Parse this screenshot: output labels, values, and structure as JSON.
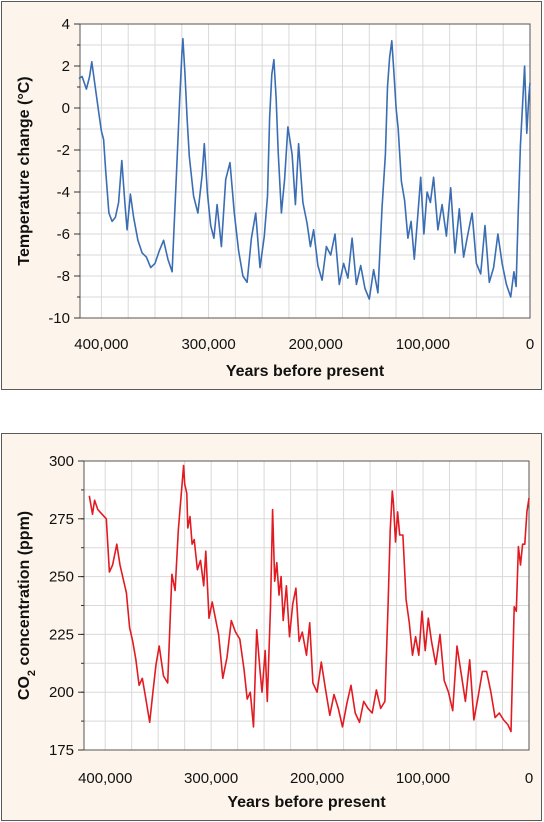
{
  "colors": {
    "background": "#fdf5ec",
    "grid": "#d9d9d9",
    "temperature_line": "#3a6db3",
    "co2_line": "#e21b22"
  },
  "chart_data": [
    {
      "type": "line",
      "xlabel": "Years before present",
      "ylabel": "Temperature change (°C)",
      "xlim": [
        420000,
        0
      ],
      "ylim": [
        -10,
        4
      ],
      "xticks": [
        400000,
        300000,
        200000,
        100000,
        0
      ],
      "xtick_labels": [
        "400,000",
        "300,000",
        "200,000",
        "100,000",
        "0"
      ],
      "yticks": [
        4,
        2,
        0,
        -2,
        -4,
        -6,
        -8,
        -10
      ],
      "ytick_labels": [
        "4",
        "2",
        "0",
        "-2",
        "-4",
        "-6",
        "-8",
        "-10"
      ],
      "grid": true,
      "series": [
        {
          "color": "#3a6db3",
          "x": [
            421000,
            418000,
            414000,
            411000,
            409000,
            405000,
            402000,
            400000,
            398000,
            396000,
            393000,
            390000,
            387000,
            384000,
            381000,
            378000,
            376000,
            373000,
            370000,
            366000,
            362000,
            358000,
            354000,
            350000,
            346000,
            342000,
            338000,
            334000,
            330000,
            327000,
            325000,
            324000,
            322000,
            320000,
            318000,
            314000,
            310000,
            306000,
            304000,
            301000,
            298000,
            295000,
            292000,
            288000,
            284000,
            280000,
            276000,
            272000,
            268000,
            264000,
            260000,
            256000,
            252000,
            248000,
            245000,
            243000,
            241000,
            239000,
            237000,
            235000,
            232000,
            229000,
            226000,
            222000,
            219000,
            216000,
            212000,
            208000,
            205000,
            202000,
            198000,
            194000,
            190000,
            186000,
            182000,
            178000,
            174000,
            170000,
            166000,
            162000,
            158000,
            154000,
            150000,
            146000,
            142000,
            138000,
            135000,
            133000,
            131000,
            129000,
            127000,
            125000,
            123000,
            120000,
            117000,
            114000,
            111000,
            108000,
            105000,
            102000,
            99000,
            96000,
            93000,
            90000,
            86000,
            82000,
            78000,
            74000,
            70000,
            66000,
            62000,
            58000,
            54000,
            50000,
            46000,
            42000,
            38000,
            34000,
            30000,
            26000,
            22000,
            18000,
            15000,
            13000,
            11000,
            9000,
            7000,
            5000,
            3000,
            1000,
            0
          ],
          "y": [
            1.4,
            1.5,
            0.9,
            1.5,
            2.2,
            0.7,
            -0.4,
            -1.1,
            -1.5,
            -3.0,
            -5.0,
            -5.4,
            -5.2,
            -4.5,
            -2.5,
            -4.6,
            -5.8,
            -4.1,
            -5.2,
            -6.3,
            -6.9,
            -7.1,
            -7.6,
            -7.4,
            -6.8,
            -6.3,
            -7.2,
            -7.8,
            -3.2,
            0.3,
            2.5,
            3.3,
            1.6,
            -0.5,
            -2.3,
            -4.2,
            -5.0,
            -3.2,
            -1.7,
            -4.1,
            -5.6,
            -6.2,
            -4.6,
            -6.6,
            -3.4,
            -2.6,
            -5.0,
            -6.8,
            -8.0,
            -8.3,
            -6.2,
            -5.0,
            -7.6,
            -6.1,
            -4.2,
            -0.5,
            1.6,
            2.3,
            0.5,
            -2.1,
            -5.0,
            -3.4,
            -0.9,
            -2.2,
            -4.6,
            -1.7,
            -4.5,
            -5.5,
            -6.6,
            -5.8,
            -7.5,
            -8.2,
            -6.6,
            -7.0,
            -6.0,
            -8.4,
            -7.4,
            -8.1,
            -6.2,
            -8.4,
            -7.5,
            -8.6,
            -9.1,
            -7.7,
            -8.8,
            -4.7,
            -2.2,
            1.0,
            2.4,
            3.2,
            1.7,
            0.0,
            -1.0,
            -3.5,
            -4.4,
            -6.2,
            -5.4,
            -7.2,
            -5.3,
            -3.3,
            -6.0,
            -4.0,
            -4.5,
            -3.3,
            -5.8,
            -4.6,
            -6.1,
            -3.8,
            -6.9,
            -4.8,
            -7.1,
            -6.0,
            -5.0,
            -7.4,
            -7.9,
            -5.6,
            -8.3,
            -7.6,
            -6.0,
            -7.4,
            -8.4,
            -9.0,
            -7.8,
            -8.5,
            -5.0,
            -1.8,
            0.1,
            2.0,
            -1.2,
            0.6,
            1.2
          ]
        }
      ]
    },
    {
      "type": "line",
      "xlabel": "Years before present",
      "ylabel": "CO2 concentration (ppm)",
      "ylabel_main": "CO",
      "ylabel_sub": "2",
      "ylabel_rest": " concentration (ppm)",
      "xlim": [
        420000,
        0
      ],
      "ylim": [
        175,
        300
      ],
      "xticks": [
        400000,
        300000,
        200000,
        100000,
        0
      ],
      "xtick_labels": [
        "400,000",
        "300,000",
        "200,000",
        "100,000",
        "0"
      ],
      "yticks": [
        300,
        275,
        250,
        225,
        200,
        175
      ],
      "ytick_labels": [
        "300",
        "275",
        "250",
        "225",
        "200",
        "175"
      ],
      "grid": true,
      "series": [
        {
          "color": "#e21b22",
          "x": [
            415000,
            412000,
            410000,
            407000,
            403000,
            399000,
            396000,
            393000,
            389000,
            386000,
            383000,
            380000,
            377000,
            374000,
            371000,
            368000,
            365000,
            362000,
            358000,
            355000,
            352000,
            349000,
            345000,
            341000,
            337000,
            334000,
            331000,
            328000,
            326000,
            325000,
            323000,
            322000,
            320000,
            318000,
            316000,
            313000,
            310000,
            307000,
            305000,
            302000,
            299000,
            296000,
            293000,
            289000,
            285000,
            281000,
            277000,
            273000,
            269000,
            266000,
            263000,
            260000,
            257000,
            254000,
            252000,
            249000,
            247000,
            244000,
            242000,
            240000,
            238000,
            236000,
            234000,
            232000,
            229000,
            226000,
            223000,
            220000,
            217000,
            214000,
            210000,
            207000,
            204000,
            200000,
            196000,
            192000,
            188000,
            184000,
            180000,
            176000,
            172000,
            168000,
            164000,
            160000,
            156000,
            152000,
            148000,
            144000,
            140000,
            136000,
            133000,
            131000,
            129000,
            128000,
            126000,
            124000,
            122000,
            119000,
            116000,
            113000,
            110000,
            107000,
            104000,
            101000,
            98000,
            95000,
            92000,
            88000,
            84000,
            80000,
            76000,
            72000,
            68000,
            64000,
            60000,
            56000,
            52000,
            48000,
            44000,
            40000,
            36000,
            32000,
            28000,
            24000,
            20000,
            17000,
            14000,
            12000,
            10000,
            8000,
            6000,
            4000,
            2000,
            0
          ],
          "y": [
            285,
            277,
            283,
            279,
            277,
            275,
            252,
            255,
            264,
            255,
            249,
            243,
            228,
            222,
            214,
            203,
            206,
            198,
            187,
            200,
            212,
            220,
            207,
            204,
            251,
            244,
            270,
            287,
            298,
            290,
            286,
            271,
            276,
            264,
            266,
            253,
            257,
            246,
            261,
            232,
            239,
            232,
            225,
            206,
            215,
            231,
            226,
            223,
            210,
            197,
            200,
            185,
            227,
            210,
            200,
            218,
            196,
            237,
            279,
            248,
            256,
            242,
            250,
            231,
            246,
            224,
            238,
            245,
            222,
            226,
            216,
            230,
            204,
            200,
            213,
            201,
            190,
            199,
            193,
            185,
            195,
            203,
            191,
            187,
            196,
            193,
            191,
            201,
            193,
            196,
            238,
            270,
            287,
            282,
            265,
            278,
            268,
            268,
            240,
            230,
            216,
            224,
            216,
            235,
            218,
            232,
            222,
            212,
            225,
            205,
            200,
            192,
            220,
            208,
            196,
            214,
            188,
            198,
            209,
            209,
            200,
            189,
            191,
            188,
            186,
            183,
            237,
            235,
            263,
            255,
            264,
            264,
            278,
            284
          ]
        }
      ]
    }
  ]
}
